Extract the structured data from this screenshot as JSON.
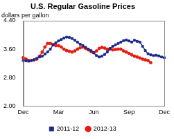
{
  "chart_data": {
    "type": "line",
    "title": "U.S. Regular Gasoline Prices",
    "subtitle": "dollars per gallon",
    "categories": [
      "Dec",
      null,
      null,
      null,
      null,
      null,
      null,
      null,
      null,
      null,
      null,
      null,
      null,
      "Mar",
      null,
      null,
      null,
      null,
      null,
      null,
      null,
      null,
      null,
      null,
      null,
      null,
      "Jun",
      null,
      null,
      null,
      null,
      null,
      null,
      null,
      null,
      null,
      null,
      null,
      null,
      "Sep",
      null,
      null,
      null,
      null,
      null,
      null,
      null,
      null,
      null,
      null,
      null,
      null,
      "Dec"
    ],
    "series": [
      {
        "name": "2011-12",
        "color": "#1c2a8a",
        "marker": "square",
        "line_style": "solid",
        "values": [
          3.28,
          3.27,
          3.26,
          3.28,
          3.3,
          3.34,
          3.38,
          3.4,
          3.46,
          3.52,
          3.6,
          3.72,
          3.78,
          3.83,
          3.87,
          3.91,
          3.94,
          3.93,
          3.9,
          3.85,
          3.8,
          3.74,
          3.7,
          3.65,
          3.6,
          3.56,
          3.5,
          3.42,
          3.38,
          3.4,
          3.45,
          3.52,
          3.62,
          3.68,
          3.72,
          3.76,
          3.8,
          3.84,
          3.86,
          3.83,
          3.8,
          3.85,
          3.82,
          3.8,
          3.68,
          3.56,
          3.47,
          3.44,
          3.42,
          3.43,
          3.41,
          3.38,
          3.36
        ]
      },
      {
        "name": "2012-13",
        "color": "#e8190f",
        "marker": "circle",
        "line_style": "solid",
        "values": [
          3.36,
          3.32,
          3.28,
          3.28,
          3.3,
          3.32,
          3.4,
          3.52,
          3.66,
          3.76,
          3.76,
          3.73,
          3.7,
          3.7,
          3.66,
          3.6,
          3.56,
          3.54,
          3.52,
          3.55,
          3.6,
          3.64,
          3.66,
          3.62,
          3.58,
          3.53,
          3.5,
          3.55,
          3.62,
          3.65,
          3.63,
          3.6,
          3.6,
          3.58,
          3.59,
          3.6,
          3.6,
          3.55,
          3.52,
          3.48,
          3.44,
          3.4,
          3.38,
          3.35,
          3.32,
          3.3,
          3.28,
          3.22,
          null,
          null,
          null,
          null,
          null
        ]
      }
    ],
    "ylim": [
      2,
      4.4
    ],
    "yticks": [
      {
        "value": 2,
        "label": "2.00"
      },
      {
        "value": 2.8,
        "label": "2.80"
      },
      {
        "value": 3.6,
        "label": "3.60"
      },
      {
        "value": 4.4,
        "label": "4.40"
      }
    ],
    "grid": false,
    "legend": "bottom"
  }
}
